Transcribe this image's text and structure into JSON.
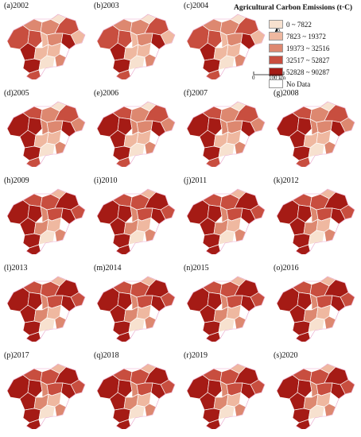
{
  "legend": {
    "title": "Agricultural Carbon Emissions (t·C)",
    "north_label": "N",
    "scale_zero": "0",
    "scale_label": "100 km",
    "classes": [
      {
        "label": "0 ~ 7822",
        "color": "#f7e1cf"
      },
      {
        "label": "7823 ~ 19372",
        "color": "#efb8a0"
      },
      {
        "label": "19373 ~ 32516",
        "color": "#dd8870"
      },
      {
        "label": "32517 ~ 52827",
        "color": "#c84e3f"
      },
      {
        "label": "52828 ~ 90287",
        "color": "#a51b15"
      },
      {
        "label": "No Data",
        "color": "#ffffff"
      }
    ]
  },
  "panels": [
    {
      "label": "(a)2002",
      "level": 0
    },
    {
      "label": "(b)2003",
      "level": 0
    },
    {
      "label": "(c)2004",
      "level": 0
    },
    {
      "label": "(d)2005",
      "level": 1
    },
    {
      "label": "(e)2006",
      "level": 1
    },
    {
      "label": "(f)2007",
      "level": 1
    },
    {
      "label": "(g)2008",
      "level": 1
    },
    {
      "label": "(h)2009",
      "level": 2
    },
    {
      "label": "(i)2010",
      "level": 2
    },
    {
      "label": "(j)2011",
      "level": 2
    },
    {
      "label": "(k)2012",
      "level": 2
    },
    {
      "label": "(l)2013",
      "level": 2
    },
    {
      "label": "(m)2014",
      "level": 2
    },
    {
      "label": "(n)2015",
      "level": 2
    },
    {
      "label": "(o)2016",
      "level": 2
    },
    {
      "label": "(p)2017",
      "level": 2
    },
    {
      "label": "(q)2018",
      "level": 2
    },
    {
      "label": "(r)2019",
      "level": 2
    },
    {
      "label": "(s)2020",
      "level": 2
    }
  ]
}
